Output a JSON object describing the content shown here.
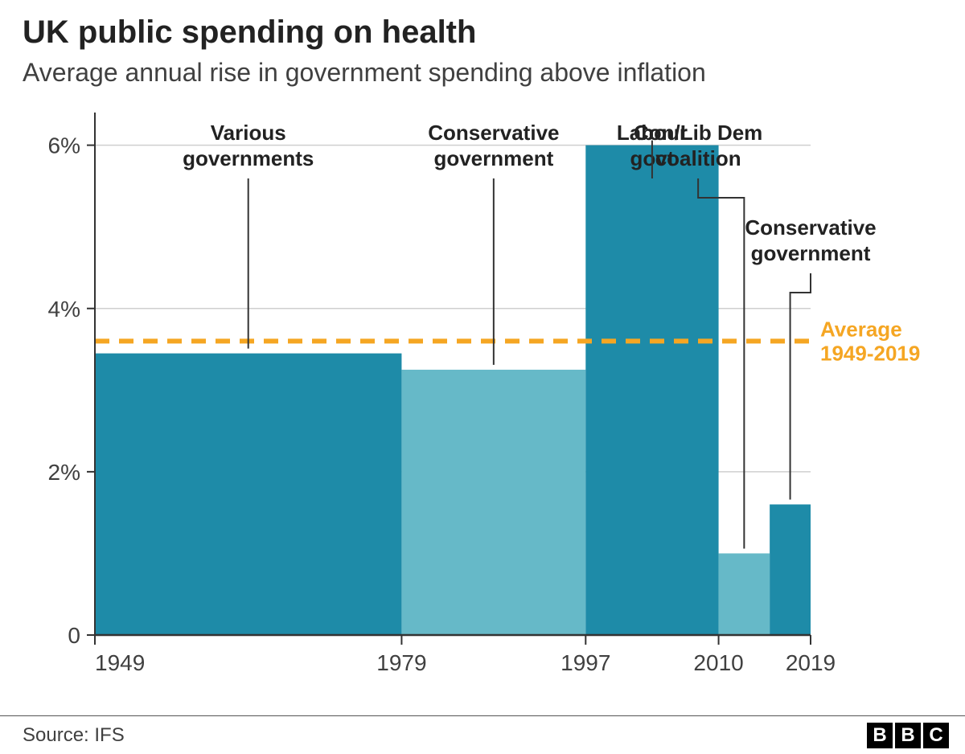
{
  "title": "UK public spending on health",
  "subtitle": "Average annual rise in government spending above inflation",
  "source": "Source: IFS",
  "logo_letters": [
    "B",
    "B",
    "C"
  ],
  "chart": {
    "type": "bar",
    "background_color": "#ffffff",
    "grid_color": "#cfcfcf",
    "axis_color": "#333333",
    "tick_font_size": 28,
    "label_font_size": 26,
    "avg_line_color": "#f5a623",
    "avg_line_value": 3.6,
    "avg_line_dash": "18 12",
    "avg_line_width": 6,
    "avg_label_line1": "Average",
    "avg_label_line2": "1949-2019",
    "ylim": [
      0,
      6.4
    ],
    "yticks": [
      {
        "v": 0,
        "label": "0"
      },
      {
        "v": 2,
        "label": "2%"
      },
      {
        "v": 4,
        "label": "4%"
      },
      {
        "v": 6,
        "label": "6%"
      }
    ],
    "x_range": [
      1949,
      2019
    ],
    "xticks": [
      1949,
      1979,
      1997,
      2010,
      2019
    ],
    "bars": [
      {
        "start": 1949,
        "end": 1979,
        "value": 3.45,
        "color": "#1e8ba8",
        "label": "Various\ngovernments"
      },
      {
        "start": 1979,
        "end": 1997,
        "value": 3.25,
        "color": "#66b9c8",
        "label": "Conservative\ngovernment"
      },
      {
        "start": 1997,
        "end": 2010,
        "value": 6.0,
        "color": "#1e8ba8",
        "label": "Labour\ngovt"
      },
      {
        "start": 2010,
        "end": 2015,
        "value": 1.0,
        "color": "#66b9c8",
        "label": "Con/Lib Dem\ncoalition"
      },
      {
        "start": 2015,
        "end": 2019,
        "value": 1.6,
        "color": "#1e8ba8",
        "label": "Conservative\ngovernment"
      }
    ]
  }
}
